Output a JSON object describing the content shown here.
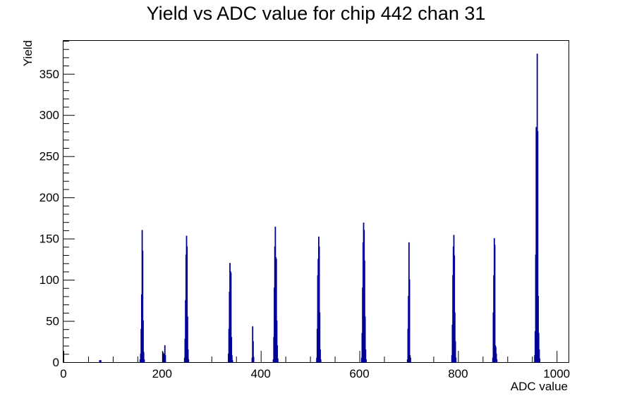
{
  "chart_data": {
    "type": "bar",
    "title": "Yield vs ADC value for chip 442 chan 31",
    "xlabel": "ADC value",
    "ylabel": "Yield",
    "xlim": [
      0,
      1024
    ],
    "ylim": [
      0,
      390
    ],
    "x_ticks": [
      0,
      200,
      400,
      600,
      800,
      1000
    ],
    "y_ticks": [
      0,
      50,
      100,
      150,
      200,
      250,
      300,
      350
    ],
    "grid": false,
    "color": "#000099",
    "series": [
      {
        "x": [
          73,
          75,
          155,
          156,
          157,
          158,
          159,
          160,
          161,
          162,
          163,
          201,
          203,
          205,
          206,
          245,
          246,
          247,
          248,
          249,
          250,
          251,
          252,
          253,
          334,
          335,
          336,
          337,
          338,
          339,
          340,
          341,
          342,
          382,
          383,
          384,
          385,
          425,
          426,
          427,
          428,
          429,
          430,
          431,
          432,
          433,
          434,
          513,
          514,
          515,
          516,
          517,
          518,
          519,
          520,
          521,
          604,
          605,
          606,
          607,
          608,
          609,
          610,
          611,
          612,
          613,
          697,
          698,
          699,
          700,
          701,
          702,
          703,
          787,
          788,
          789,
          790,
          791,
          792,
          793,
          794,
          795,
          870,
          871,
          872,
          873,
          874,
          875,
          876,
          877,
          878,
          955,
          956,
          957,
          958,
          959,
          960,
          961,
          962,
          963,
          964,
          965
        ],
        "values": [
          2,
          2,
          3,
          10,
          40,
          82,
          160,
          135,
          50,
          12,
          3,
          12,
          10,
          20,
          8,
          5,
          28,
          75,
          130,
          153,
          140,
          55,
          15,
          3,
          10,
          40,
          85,
          120,
          110,
          108,
          30,
          8,
          2,
          5,
          43,
          25,
          6,
          3,
          30,
          90,
          140,
          164,
          127,
          125,
          50,
          20,
          4,
          5,
          40,
          105,
          125,
          152,
          140,
          60,
          15,
          3,
          5,
          35,
          90,
          145,
          169,
          160,
          123,
          55,
          15,
          3,
          3,
          40,
          80,
          145,
          100,
          8,
          5,
          8,
          45,
          105,
          140,
          154,
          129,
          60,
          25,
          5,
          5,
          60,
          105,
          150,
          142,
          20,
          18,
          10,
          3,
          8,
          37,
          130,
          285,
          195,
          374,
          280,
          80,
          35,
          15,
          4
        ]
      }
    ]
  }
}
